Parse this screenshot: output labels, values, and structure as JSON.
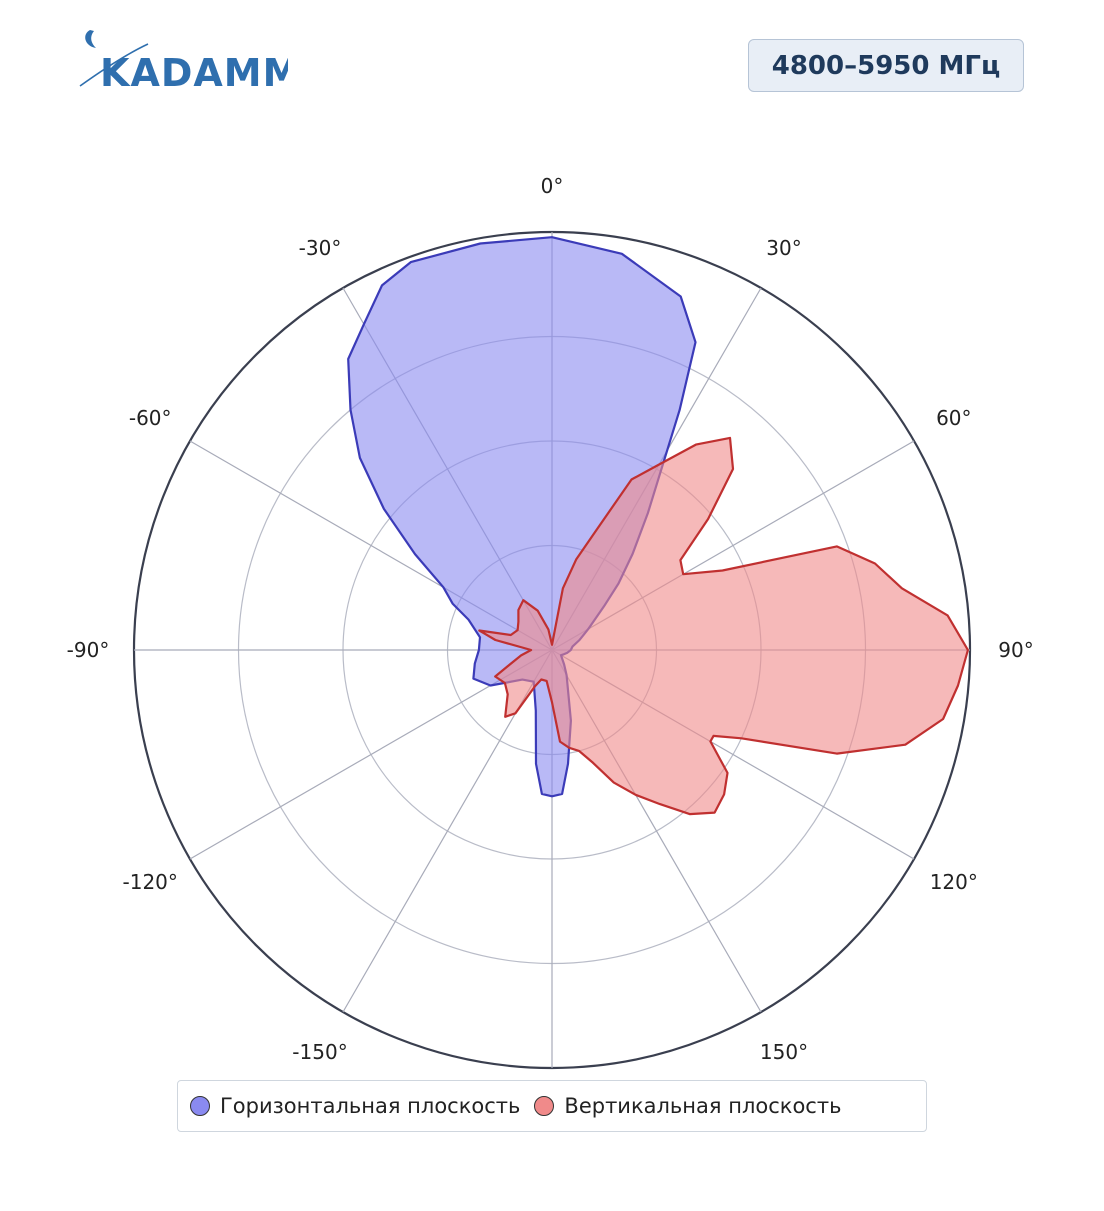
{
  "brand": {
    "logo_text": "KADAMM",
    "color": "#2f6fae"
  },
  "badge": {
    "label": "4800–5950 МГц"
  },
  "chart_data": {
    "type": "polar",
    "angular_unit": "degrees",
    "direction": "clockwise",
    "zero_position": "top",
    "angle_ticks": [
      0,
      30,
      60,
      90,
      120,
      150,
      180,
      -150,
      -120,
      -90,
      -60,
      -30
    ],
    "angle_tick_labels": [
      "0°",
      "30°",
      "60°",
      "90°",
      "120°",
      "150°",
      "",
      "-150°",
      "-120°",
      "-90°",
      "-60°",
      "-30°"
    ],
    "radial_range": [
      0,
      4
    ],
    "radial_gridlines": [
      1,
      2,
      3,
      4
    ],
    "radial_tick_labels_shown": false,
    "grid": true,
    "legend_position": "bottom",
    "series": [
      {
        "name": "Горизонтальная плоскость",
        "color": "#8a8af0",
        "line_color": "#3b3bb8",
        "points": [
          [
            0,
            3.95
          ],
          [
            10,
            3.85
          ],
          [
            20,
            3.6
          ],
          [
            25,
            3.25
          ],
          [
            28,
            2.6
          ],
          [
            30,
            2.2
          ],
          [
            35,
            1.6
          ],
          [
            40,
            1.2
          ],
          [
            45,
            0.9
          ],
          [
            50,
            0.65
          ],
          [
            60,
            0.4
          ],
          [
            70,
            0.28
          ],
          [
            80,
            0.2
          ],
          [
            90,
            0.18
          ],
          [
            100,
            0.15
          ],
          [
            110,
            0.12
          ],
          [
            120,
            0.1
          ],
          [
            140,
            0.18
          ],
          [
            150,
            0.28
          ],
          [
            165,
            0.7
          ],
          [
            172,
            1.1
          ],
          [
            176,
            1.38
          ],
          [
            180,
            1.4
          ],
          [
            184,
            1.38
          ],
          [
            188,
            1.1
          ],
          [
            195,
            0.6
          ],
          [
            210,
            0.35
          ],
          [
            225,
            0.4
          ],
          [
            240,
            0.68
          ],
          [
            250,
            0.8
          ],
          [
            260,
            0.75
          ],
          [
            270,
            0.7
          ],
          [
            280,
            0.7
          ],
          [
            290,
            0.85
          ],
          [
            295,
            1.05
          ],
          [
            300,
            1.2
          ],
          [
            305,
            1.6
          ],
          [
            310,
            2.1
          ],
          [
            315,
            2.6
          ],
          [
            320,
            3.0
          ],
          [
            325,
            3.4
          ],
          [
            330,
            3.6
          ],
          [
            335,
            3.85
          ],
          [
            340,
            3.95
          ],
          [
            350,
            3.95
          ],
          [
            360,
            3.95
          ]
        ]
      },
      {
        "name": "Вертикальная плоскость",
        "color": "#f08a8a",
        "line_color": "#c03030",
        "points": [
          [
            0,
            0.05
          ],
          [
            10,
            0.6
          ],
          [
            15,
            0.9
          ],
          [
            20,
            1.2
          ],
          [
            25,
            1.8
          ],
          [
            30,
            2.05
          ],
          [
            35,
            2.4
          ],
          [
            40,
            2.65
          ],
          [
            45,
            2.45
          ],
          [
            50,
            1.95
          ],
          [
            55,
            1.5
          ],
          [
            60,
            1.45
          ],
          [
            65,
            1.8
          ],
          [
            70,
            2.9
          ],
          [
            75,
            3.2
          ],
          [
            80,
            3.4
          ],
          [
            85,
            3.8
          ],
          [
            90,
            3.98
          ],
          [
            95,
            3.9
          ],
          [
            100,
            3.8
          ],
          [
            105,
            3.5
          ],
          [
            110,
            2.9
          ],
          [
            115,
            2.0
          ],
          [
            118,
            1.75
          ],
          [
            120,
            1.75
          ],
          [
            125,
            2.05
          ],
          [
            130,
            2.15
          ],
          [
            135,
            2.2
          ],
          [
            140,
            2.05
          ],
          [
            145,
            1.8
          ],
          [
            150,
            1.6
          ],
          [
            155,
            1.4
          ],
          [
            160,
            1.15
          ],
          [
            165,
            1.0
          ],
          [
            170,
            0.95
          ],
          [
            175,
            0.88
          ],
          [
            180,
            0.5
          ],
          [
            190,
            0.3
          ],
          [
            200,
            0.3
          ],
          [
            205,
            0.38
          ],
          [
            210,
            0.7
          ],
          [
            215,
            0.78
          ],
          [
            225,
            0.6
          ],
          [
            235,
            0.55
          ],
          [
            245,
            0.6
          ],
          [
            250,
            0.45
          ],
          [
            260,
            0.3
          ],
          [
            270,
            0.2
          ],
          [
            280,
            0.55
          ],
          [
            285,
            0.72
          ],
          [
            290,
            0.42
          ],
          [
            300,
            0.38
          ],
          [
            310,
            0.42
          ],
          [
            320,
            0.5
          ],
          [
            330,
            0.55
          ],
          [
            340,
            0.4
          ],
          [
            350,
            0.2
          ],
          [
            360,
            0.05
          ]
        ]
      }
    ]
  },
  "legend": {
    "items": [
      {
        "label": "Горизонтальная плоскость",
        "color": "#8a8af0"
      },
      {
        "label": "Вертикальная плоскость",
        "color": "#f08a8a"
      }
    ]
  }
}
